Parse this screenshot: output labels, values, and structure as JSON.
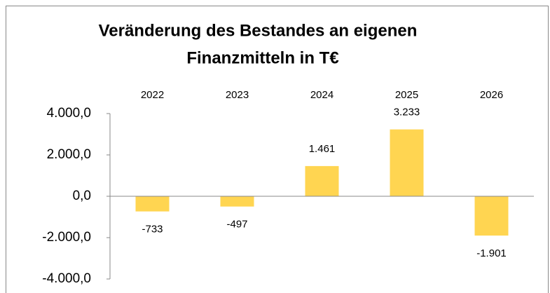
{
  "chart_data": {
    "type": "bar",
    "title": [
      "Veränderung des Bestandes an eigenen",
      "Finanzmitteln in T€"
    ],
    "categories": [
      "2022",
      "2023",
      "2024",
      "2025",
      "2026"
    ],
    "values": [
      -733,
      -497,
      1461,
      3233,
      -1901
    ],
    "value_labels": [
      "-733",
      "-497",
      "1.461",
      "3.233",
      "-1.901"
    ],
    "color": "#ffd551",
    "ylim": [
      -4000,
      4000
    ],
    "yticks": [
      {
        "value": -4000,
        "label": "-4.000,0"
      },
      {
        "value": -2000,
        "label": "-2.000,0"
      },
      {
        "value": 0,
        "label": "0,0"
      },
      {
        "value": 2000,
        "label": "2.000,0"
      },
      {
        "value": 4000,
        "label": "4.000,0"
      }
    ],
    "grid": false
  }
}
